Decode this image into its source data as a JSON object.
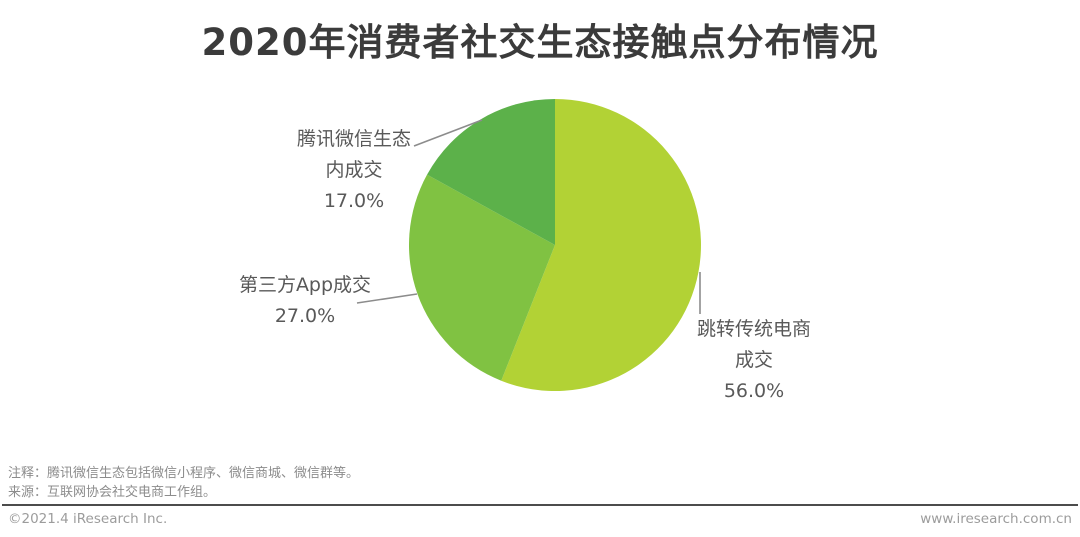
{
  "title": "2020年消费者社交生态接触点分布情况",
  "chart_data": {
    "type": "pie",
    "title": "2020年消费者社交生态接触点分布情况",
    "start_angle_deg": 0,
    "direction": "clockwise",
    "total": 100,
    "legend_position": "none",
    "segments": [
      {
        "name": "跳转传统电商成交",
        "label_lines": [
          "跳转传统电商",
          "成交"
        ],
        "value": 56.0,
        "value_label": "56.0%",
        "color": "#b2d235"
      },
      {
        "name": "第三方App成交",
        "label_lines": [
          "第三方App成交"
        ],
        "value": 27.0,
        "value_label": "27.0%",
        "color": "#80c242"
      },
      {
        "name": "腾讯微信生态内成交",
        "label_lines": [
          "腾讯微信生态",
          "内成交"
        ],
        "value": 17.0,
        "value_label": "17.0%",
        "color": "#5cb14a"
      }
    ]
  },
  "notes": {
    "annotation": "注释：腾讯微信生态包括微信小程序、微信商城、微信群等。",
    "source": "来源：互联网协会社交电商工作组。"
  },
  "footer": {
    "copyright": "©2021.4 iResearch Inc.",
    "website": "www.iresearch.com.cn"
  }
}
